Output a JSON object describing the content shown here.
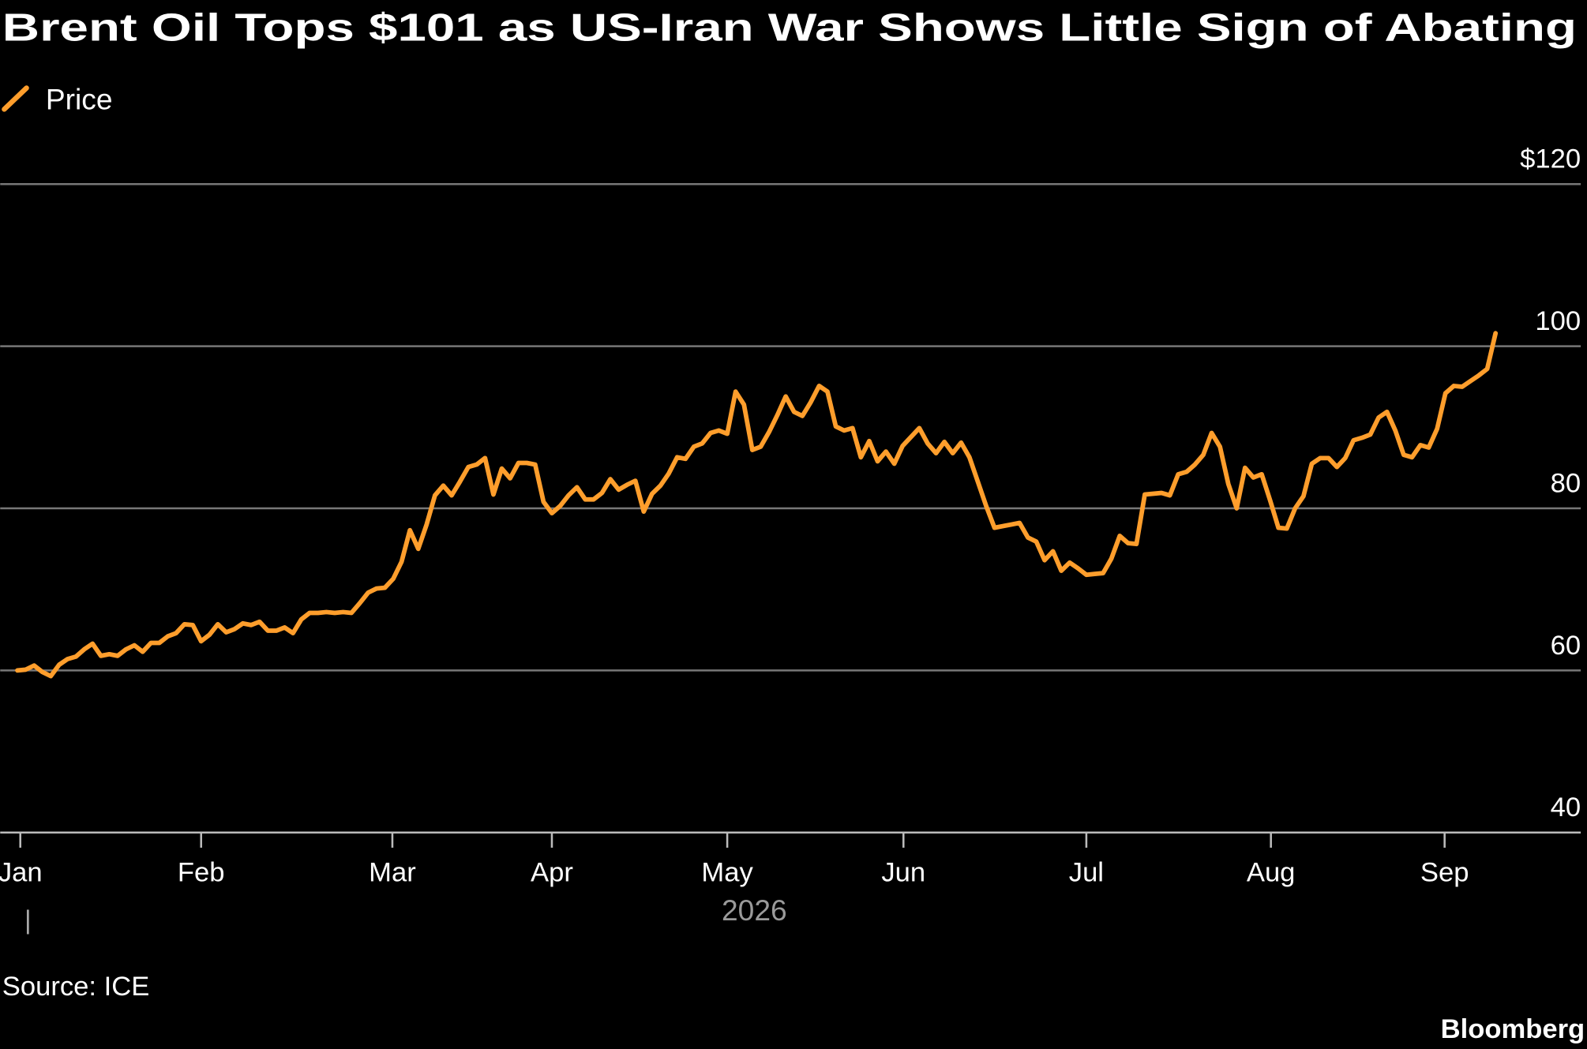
{
  "chart_data": {
    "type": "line",
    "title": "Brent Oil Tops $101 as US-Iran War Shows Little Sign of Abating",
    "x_label": "2026",
    "source": "Source: ICE",
    "brand": "Bloomberg",
    "series": [
      {
        "name": "Price",
        "color": "#ff9e2c",
        "values": [
          60,
          60.1,
          60.6,
          59.8,
          59.3,
          60.7,
          61.4,
          61.7,
          62.6,
          63.3,
          61.8,
          62,
          61.8,
          62.6,
          63.1,
          62.3,
          63.4,
          63.4,
          64.2,
          64.6,
          65.7,
          65.6,
          63.6,
          64.4,
          65.7,
          64.7,
          65.1,
          65.8,
          65.6,
          66,
          64.9,
          64.9,
          65.3,
          64.6,
          66.3,
          67.1,
          67.1,
          67.2,
          67.1,
          67.2,
          67.1,
          68.3,
          69.6,
          70.1,
          70.2,
          71.3,
          73.4,
          77.3,
          75,
          78,
          81.6,
          82.8,
          81.6,
          83.3,
          85.1,
          85.4,
          86.2,
          81.7,
          84.9,
          83.7,
          85.6,
          85.6,
          85.4,
          80.8,
          79.4,
          80.3,
          81.6,
          82.6,
          81.1,
          81.1,
          81.9,
          83.6,
          82.3,
          82.9,
          83.4,
          79.6,
          81.8,
          82.8,
          84.3,
          86.3,
          86.1,
          87.6,
          88,
          89.3,
          89.6,
          89.2,
          94.4,
          92.8,
          87.2,
          87.6,
          89.4,
          91.5,
          93.8,
          91.9,
          91.4,
          93.1,
          95.1,
          94.4,
          90.1,
          89.6,
          89.9,
          86.3,
          88.3,
          85.8,
          87,
          85.5,
          87.7,
          88.8,
          89.9,
          88,
          86.8,
          88.2,
          86.8,
          88.1,
          86.3,
          83.3,
          80.3,
          77.6,
          77.8,
          78,
          78.2,
          76.4,
          75.9,
          73.6,
          74.7,
          72.3,
          73.3,
          72.6,
          71.8,
          71.9,
          72,
          73.8,
          76.6,
          75.7,
          75.6,
          81.7,
          81.8,
          81.9,
          81.6,
          84.2,
          84.5,
          85.4,
          86.6,
          89.3,
          87.6,
          83,
          80,
          85,
          83.8,
          84.2,
          81,
          77.6,
          77.5,
          80,
          81.5,
          85.5,
          86.2,
          86.2,
          85.1,
          86.2,
          88.4,
          88.7,
          89.1,
          91.2,
          91.9,
          89.6,
          86.6,
          86.3,
          87.8,
          87.5,
          89.8,
          94.2,
          95.1,
          95,
          95.7,
          96.4,
          97.2,
          101.6
        ]
      }
    ],
    "xlim": [
      -2.06,
      187.2
    ],
    "xticks": [
      {
        "value": 0.35,
        "label": "Jan"
      },
      {
        "value": 22,
        "label": "Feb"
      },
      {
        "value": 44.9,
        "label": "Mar"
      },
      {
        "value": 64,
        "label": "Apr"
      },
      {
        "value": 85,
        "label": "May"
      },
      {
        "value": 106.1,
        "label": "Jun"
      },
      {
        "value": 128,
        "label": "Jul"
      },
      {
        "value": 150.1,
        "label": "Aug"
      },
      {
        "value": 170.9,
        "label": "Sep"
      }
    ],
    "ylim": [
      40,
      120
    ],
    "yticks": [
      40,
      60,
      80,
      100,
      {
        "value": 120,
        "label": "$120"
      }
    ],
    "grid": true
  }
}
